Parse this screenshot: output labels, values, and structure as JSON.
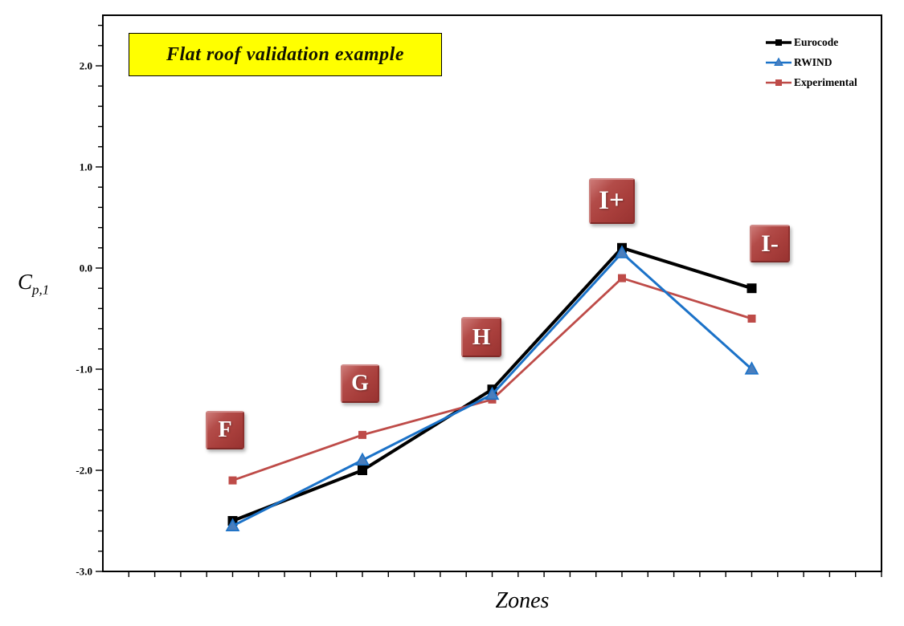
{
  "title": "Flat roof validation example",
  "y_axis": {
    "label_base": "C",
    "label_sub": "p,1"
  },
  "x_axis": {
    "label": "Zones"
  },
  "legend": {
    "items": [
      "Eurocode",
      "RWIND",
      "Experimental"
    ],
    "position": "top-right"
  },
  "zone_annotations": [
    "F",
    "G",
    "H",
    "I+",
    "I-"
  ],
  "colors": {
    "eurocode": "#000000",
    "rwind": "#1B72C8",
    "rwind_marker_fill": "#4A7EBD",
    "experimental": "#BE4B48",
    "zone_box": "#A93F3C",
    "title_background": "#FFFF00",
    "axis": "#000000"
  },
  "chart_data": {
    "type": "line",
    "title": "Flat roof validation example",
    "categories": [
      "F",
      "G",
      "H",
      "I+",
      "I-"
    ],
    "series": [
      {
        "name": "Eurocode",
        "color": "#000000",
        "marker": "square",
        "values": [
          -2.5,
          -2.0,
          -1.2,
          0.2,
          -0.2
        ]
      },
      {
        "name": "RWIND",
        "color": "#1B72C8",
        "marker": "triangle",
        "marker_fill": "#4A7EBD",
        "values": [
          -2.55,
          -1.9,
          -1.25,
          0.15,
          -1.0
        ]
      },
      {
        "name": "Experimental",
        "color": "#BE4B48",
        "marker": "square",
        "values": [
          -2.1,
          -1.65,
          -1.3,
          -0.1,
          -0.5
        ]
      }
    ],
    "xlabel": "Zones",
    "ylabel": "Cp,1",
    "ylim": [
      -3.0,
      2.5
    ],
    "y_major_tick_step": 1.0,
    "y_minor_tick_step": 0.2,
    "y_tick_labels": [
      "2.0",
      "1.0",
      "0.0",
      "-1.0",
      "-2.0",
      "-3.0"
    ],
    "x_category_tick_labels_shown": false,
    "grid": false,
    "legend_position": "top-right"
  }
}
